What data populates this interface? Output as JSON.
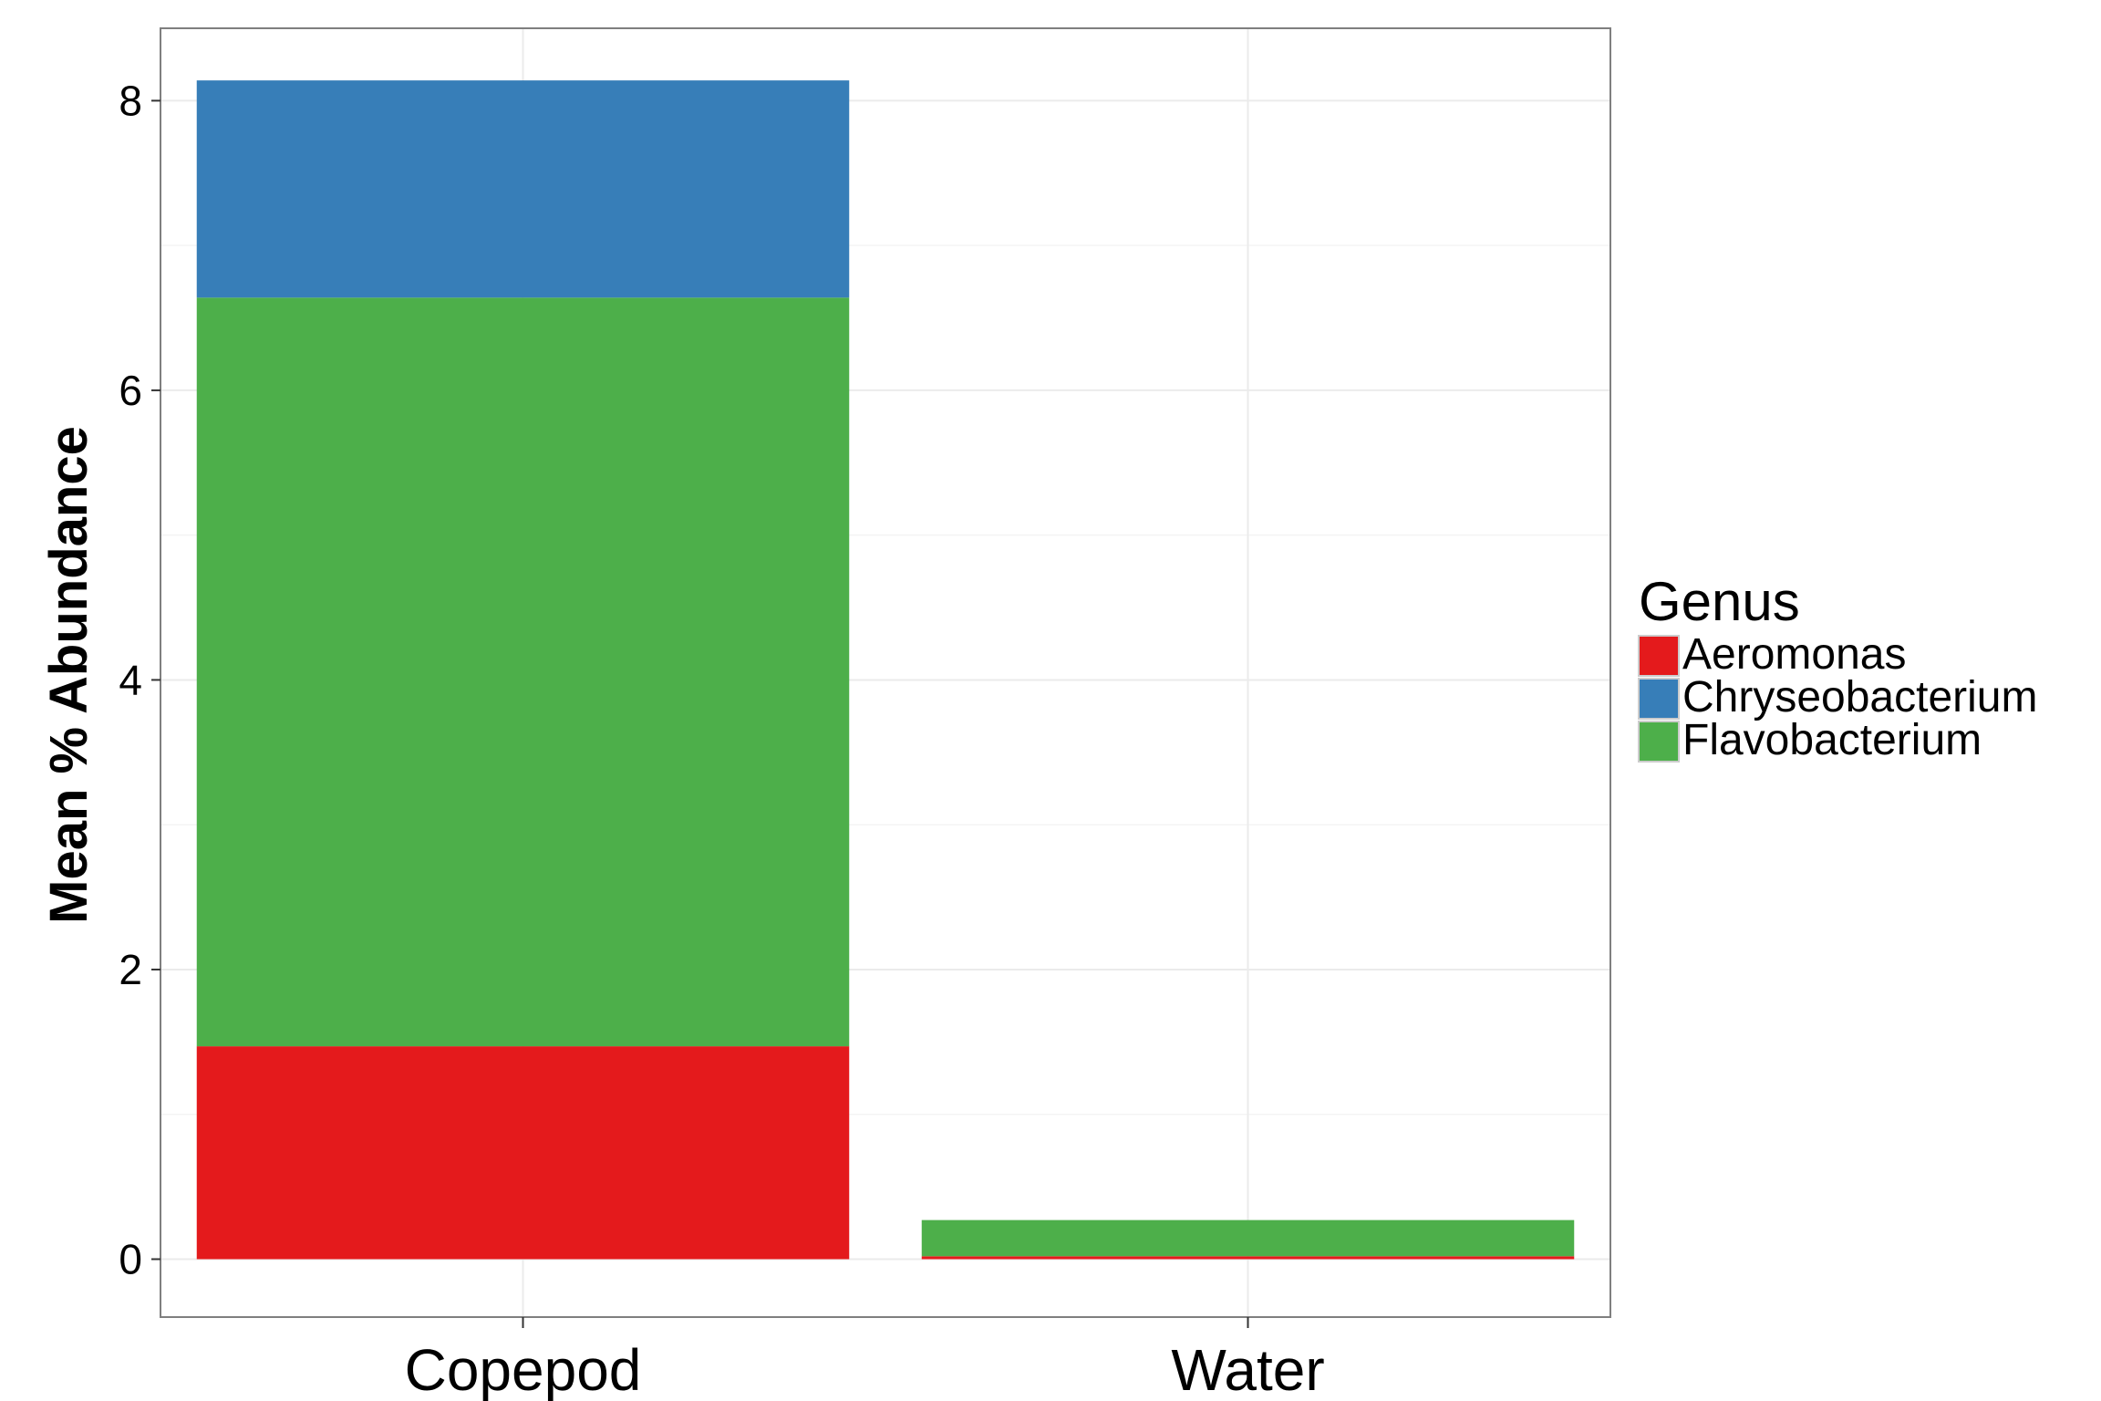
{
  "chart_data": {
    "type": "bar",
    "stacked": true,
    "categories": [
      "Copepod",
      "Water"
    ],
    "series": [
      {
        "name": "Aeromonas",
        "color": "#E41A1C",
        "values": [
          1.47,
          0.02
        ]
      },
      {
        "name": "Flavobacterium",
        "color": "#4DAF4A",
        "values": [
          5.17,
          0.25
        ]
      },
      {
        "name": "Chryseobacterium",
        "color": "#377EB8",
        "values": [
          1.5,
          0.0
        ]
      }
    ],
    "title": "",
    "xlabel": "",
    "ylabel": "Mean % Abundance",
    "ylim": [
      -0.4,
      8.5
    ],
    "yticks": [
      0,
      2,
      4,
      6,
      8
    ],
    "grid": true,
    "legend": {
      "title": "Genus",
      "position": "right",
      "order": [
        "Aeromonas",
        "Chryseobacterium",
        "Flavobacterium"
      ]
    }
  }
}
